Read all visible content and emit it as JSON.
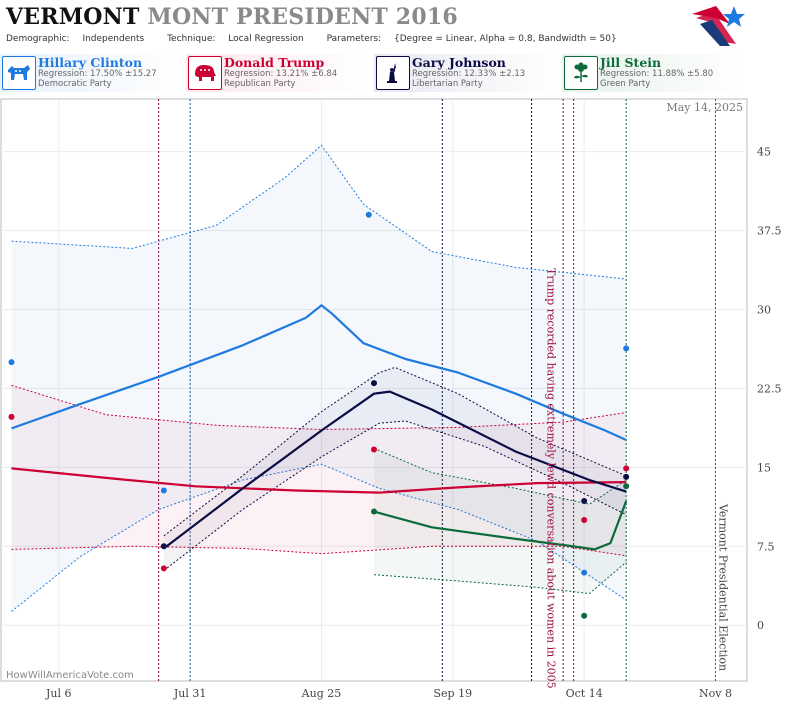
{
  "header": {
    "title_state": "VERMONT",
    "title_rest": "MONT PRESIDENT 2016",
    "demographic_label": "Demographic:",
    "demographic_value": "Independents",
    "technique_label": "Technique:",
    "technique_value": "Local Regression",
    "parameters_label": "Parameters:",
    "parameters_value": "{Degree = Linear, Alpha = 0.8, Bandwidth = 50}"
  },
  "candidates": [
    {
      "name": "Hillary Clinton",
      "regression": "Regression: 17.50% ±15.27",
      "party": "Democratic Party",
      "color": "#1f7ae0",
      "icon": "donkey-icon"
    },
    {
      "name": "Donald Trump",
      "regression": "Regression: 13.21% ±6.84",
      "party": "Republican Party",
      "color": "#cc0033",
      "icon": "elephant-icon"
    },
    {
      "name": "Gary Johnson",
      "regression": "Regression: 12.33% ±2.13",
      "party": "Libertarian Party",
      "color": "#0b0b45",
      "icon": "statue-of-liberty-icon"
    },
    {
      "name": "Jill Stein",
      "regression": "Regression: 11.88% ±5.80",
      "party": "Green Party",
      "color": "#0b6b3a",
      "icon": "flower-icon"
    }
  ],
  "chart_data": {
    "type": "line",
    "date_label": "May 14, 2025",
    "watermark": "HowWillAmericaVote.com",
    "x_ticks": [
      "Jul 6",
      "Jul 31",
      "Aug 25",
      "Sep 19",
      "Oct 14",
      "Nov 8"
    ],
    "x_tick_dates": [
      "2016-07-06",
      "2016-07-31",
      "2016-08-25",
      "2016-09-19",
      "2016-10-14",
      "2016-11-08"
    ],
    "x_range": [
      "2016-06-25",
      "2016-11-14"
    ],
    "y_ticks": [
      0,
      7.5,
      15,
      22.5,
      30,
      37.5,
      45
    ],
    "ylim": [
      -5.3,
      50
    ],
    "poll_lines": [
      {
        "date": "2016-07-25",
        "color": "#880044"
      },
      {
        "date": "2016-07-31",
        "color": "#1f5fa0"
      },
      {
        "date": "2016-09-17",
        "color": "#0b0b45"
      },
      {
        "date": "2016-10-04",
        "color": "#0b0b45"
      },
      {
        "date": "2016-10-10",
        "color": "#880044"
      },
      {
        "date": "2016-10-12",
        "color": "#880044"
      },
      {
        "date": "2016-10-22",
        "color": "#0b6b3a"
      },
      {
        "date": "2016-11-08",
        "color": "#555555"
      }
    ],
    "annotations": [
      {
        "date": "2016-10-07",
        "text": "Trump recorded having extremely lewd conversation about women in 2005",
        "color": "#a01040"
      },
      {
        "date": "2016-11-08",
        "text": "Vermont Presidential Election",
        "color": "#444444"
      }
    ],
    "series": [
      {
        "name": "Hillary Clinton",
        "color": "#1f7ae0",
        "line": [
          [
            "2016-06-27",
            18.7
          ],
          [
            "2016-07-10",
            21.0
          ],
          [
            "2016-07-25",
            23.6
          ],
          [
            "2016-08-10",
            26.6
          ],
          [
            "2016-08-22",
            29.2
          ],
          [
            "2016-08-25",
            30.4
          ],
          [
            "2016-08-27",
            29.6
          ],
          [
            "2016-09-02",
            26.8
          ],
          [
            "2016-09-10",
            25.3
          ],
          [
            "2016-09-20",
            24.0
          ],
          [
            "2016-10-01",
            22.0
          ],
          [
            "2016-10-10",
            20.1
          ],
          [
            "2016-10-18",
            18.5
          ],
          [
            "2016-10-22",
            17.6
          ]
        ],
        "upper": [
          [
            "2016-06-27",
            36.5
          ],
          [
            "2016-07-20",
            35.8
          ],
          [
            "2016-08-05",
            38.0
          ],
          [
            "2016-08-18",
            42.5
          ],
          [
            "2016-08-25",
            45.6
          ],
          [
            "2016-09-02",
            40.0
          ],
          [
            "2016-09-15",
            35.5
          ],
          [
            "2016-10-01",
            34.0
          ],
          [
            "2016-10-22",
            32.9
          ]
        ],
        "lower": [
          [
            "2016-06-27",
            1.3
          ],
          [
            "2016-07-10",
            6.5
          ],
          [
            "2016-07-25",
            11.0
          ],
          [
            "2016-08-10",
            13.8
          ],
          [
            "2016-08-25",
            15.3
          ],
          [
            "2016-09-05",
            13.0
          ],
          [
            "2016-09-20",
            11.0
          ],
          [
            "2016-10-05",
            8.0
          ],
          [
            "2016-10-22",
            2.4
          ]
        ],
        "points": [
          [
            "2016-06-27",
            25.0
          ],
          [
            "2016-07-26",
            12.8
          ],
          [
            "2016-09-03",
            39.0
          ],
          [
            "2016-10-14",
            5.0
          ],
          [
            "2016-10-22",
            26.3
          ]
        ]
      },
      {
        "name": "Donald Trump",
        "color": "#cc0033",
        "line": [
          [
            "2016-06-27",
            14.9
          ],
          [
            "2016-07-15",
            14.0
          ],
          [
            "2016-08-01",
            13.2
          ],
          [
            "2016-08-20",
            12.8
          ],
          [
            "2016-09-05",
            12.6
          ],
          [
            "2016-09-20",
            13.1
          ],
          [
            "2016-10-05",
            13.5
          ],
          [
            "2016-10-22",
            13.6
          ]
        ],
        "upper": [
          [
            "2016-06-27",
            22.8
          ],
          [
            "2016-07-15",
            20.0
          ],
          [
            "2016-08-05",
            19.0
          ],
          [
            "2016-08-25",
            18.6
          ],
          [
            "2016-09-20",
            18.8
          ],
          [
            "2016-10-10",
            19.3
          ],
          [
            "2016-10-22",
            20.2
          ]
        ],
        "lower": [
          [
            "2016-06-27",
            7.2
          ],
          [
            "2016-07-20",
            7.5
          ],
          [
            "2016-08-10",
            7.3
          ],
          [
            "2016-08-25",
            6.8
          ],
          [
            "2016-09-15",
            7.5
          ],
          [
            "2016-10-10",
            7.5
          ],
          [
            "2016-10-22",
            6.6
          ]
        ],
        "points": [
          [
            "2016-06-27",
            19.8
          ],
          [
            "2016-07-26",
            5.4
          ],
          [
            "2016-09-04",
            16.7
          ],
          [
            "2016-10-14",
            10.0
          ],
          [
            "2016-10-22",
            14.9
          ]
        ]
      },
      {
        "name": "Gary Johnson",
        "color": "#0b0b45",
        "line": [
          [
            "2016-07-26",
            7.3
          ],
          [
            "2016-08-10",
            13.0
          ],
          [
            "2016-08-25",
            18.5
          ],
          [
            "2016-09-04",
            22.0
          ],
          [
            "2016-09-07",
            22.2
          ],
          [
            "2016-09-15",
            20.5
          ],
          [
            "2016-10-01",
            16.5
          ],
          [
            "2016-10-15",
            13.8
          ],
          [
            "2016-10-22",
            12.7
          ]
        ],
        "upper": [
          [
            "2016-07-26",
            8.5
          ],
          [
            "2016-08-10",
            14.2
          ],
          [
            "2016-08-25",
            20.3
          ],
          [
            "2016-09-05",
            24.0
          ],
          [
            "2016-09-08",
            24.5
          ],
          [
            "2016-09-20",
            22.0
          ],
          [
            "2016-10-05",
            17.8
          ],
          [
            "2016-10-22",
            14.2
          ]
        ],
        "lower": [
          [
            "2016-07-26",
            5.2
          ],
          [
            "2016-08-10",
            11.0
          ],
          [
            "2016-08-25",
            16.0
          ],
          [
            "2016-09-05",
            19.2
          ],
          [
            "2016-09-10",
            19.4
          ],
          [
            "2016-09-25",
            17.0
          ],
          [
            "2016-10-10",
            13.5
          ],
          [
            "2016-10-22",
            10.5
          ]
        ],
        "points": [
          [
            "2016-07-26",
            7.5
          ],
          [
            "2016-09-04",
            23.0
          ],
          [
            "2016-10-14",
            11.8
          ],
          [
            "2016-10-22",
            14.1
          ]
        ]
      },
      {
        "name": "Jill Stein",
        "color": "#0b6b3a",
        "line": [
          [
            "2016-09-04",
            10.8
          ],
          [
            "2016-09-15",
            9.3
          ],
          [
            "2016-10-01",
            8.2
          ],
          [
            "2016-10-12",
            7.5
          ],
          [
            "2016-10-16",
            7.2
          ],
          [
            "2016-10-19",
            7.8
          ],
          [
            "2016-10-22",
            11.8
          ]
        ],
        "upper": [
          [
            "2016-09-04",
            16.8
          ],
          [
            "2016-09-15",
            14.5
          ],
          [
            "2016-10-01",
            13.0
          ],
          [
            "2016-10-15",
            11.5
          ],
          [
            "2016-10-22",
            13.8
          ]
        ],
        "lower": [
          [
            "2016-09-04",
            4.8
          ],
          [
            "2016-09-20",
            4.2
          ],
          [
            "2016-10-05",
            3.6
          ],
          [
            "2016-10-15",
            3.0
          ],
          [
            "2016-10-22",
            6.0
          ]
        ],
        "points": [
          [
            "2016-09-04",
            10.8
          ],
          [
            "2016-10-14",
            0.9
          ],
          [
            "2016-10-22",
            13.2
          ]
        ]
      }
    ]
  }
}
